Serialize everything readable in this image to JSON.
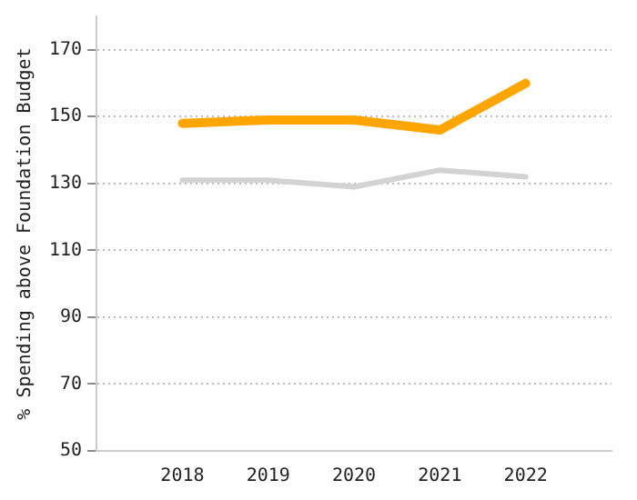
{
  "chart_data": {
    "type": "line",
    "ylabel": "% Spending above Foundation Budget",
    "categories": [
      null,
      "2018",
      "2019",
      "2020",
      "2021",
      "2022",
      null
    ],
    "series": [
      {
        "color": "#ffa500",
        "values": [
          null,
          148,
          149,
          149,
          146,
          160,
          null
        ]
      },
      {
        "color": "#d3d3d3",
        "values": [
          null,
          131,
          131,
          129,
          134,
          132,
          null
        ]
      }
    ],
    "ylim": [
      50,
      180
    ],
    "yticks": [
      50,
      70,
      90,
      110,
      130,
      150,
      170
    ],
    "grid": "y",
    "legend": false,
    "marker": "none",
    "line_style": "solid"
  }
}
